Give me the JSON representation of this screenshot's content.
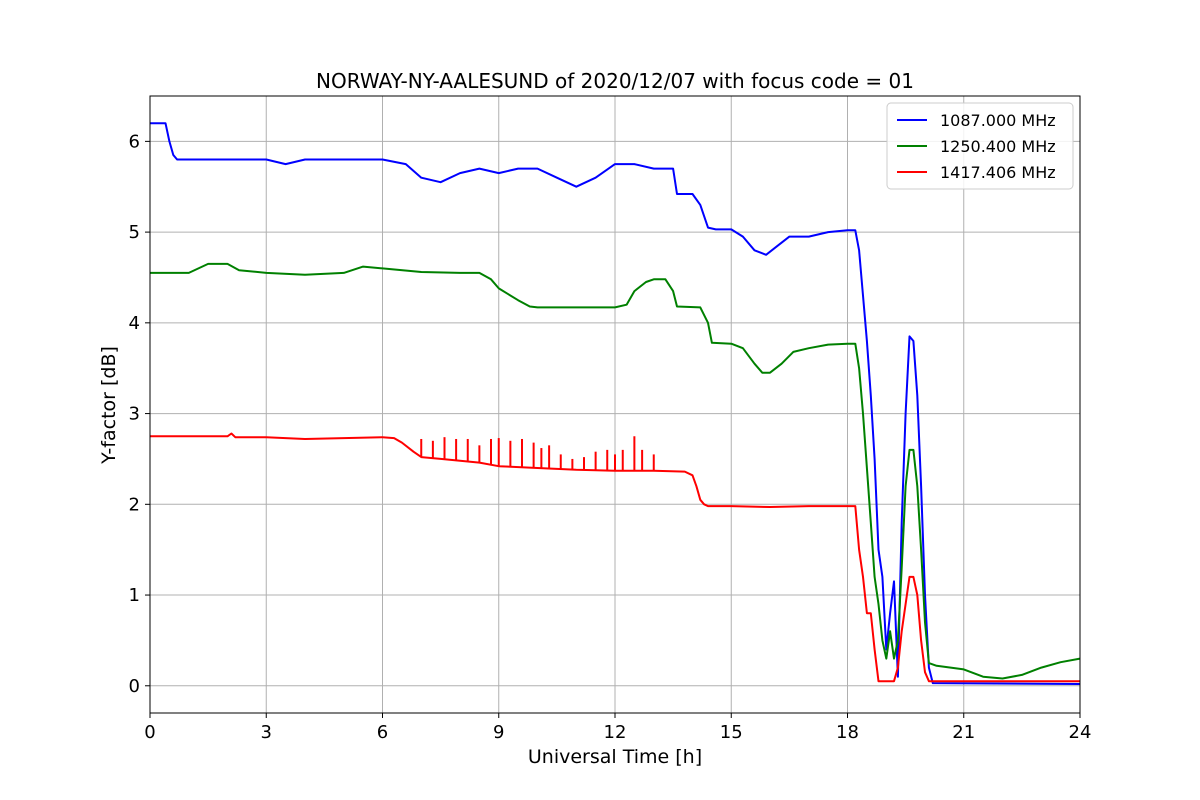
{
  "chart_data": {
    "type": "line",
    "title": "NORWAY-NY-AALESUND of 2020/12/07 with focus code = 01",
    "xlabel": "Universal Time [h]",
    "ylabel": "Y-factor [dB]",
    "xlim": [
      0,
      24
    ],
    "ylim": [
      -0.3,
      6.5
    ],
    "xticks": [
      0,
      3,
      6,
      9,
      12,
      15,
      18,
      21,
      24
    ],
    "yticks": [
      0,
      1,
      2,
      3,
      4,
      5,
      6
    ],
    "grid": true,
    "legend_position": "top-right",
    "series": [
      {
        "name": "1087.000 MHz",
        "color": "#0000ff",
        "x": [
          0,
          0.4,
          0.5,
          0.6,
          0.7,
          3.0,
          3.5,
          4.0,
          6.0,
          6.6,
          7.0,
          7.5,
          8.0,
          8.5,
          9.0,
          9.5,
          10.0,
          10.5,
          11.0,
          11.5,
          12.0,
          12.5,
          13.0,
          13.5,
          13.6,
          14.0,
          14.2,
          14.4,
          14.6,
          15.0,
          15.3,
          15.6,
          15.9,
          16.2,
          16.5,
          17.0,
          17.5,
          18.0,
          18.2,
          18.3,
          18.4,
          18.5,
          18.6,
          18.7,
          18.8,
          18.9,
          19.0,
          19.1,
          19.2,
          19.3,
          19.4,
          19.5,
          19.6,
          19.7,
          19.8,
          19.9,
          20.0,
          20.1,
          20.2,
          24.0
        ],
        "y": [
          6.2,
          6.2,
          6.0,
          5.85,
          5.8,
          5.8,
          5.75,
          5.8,
          5.8,
          5.75,
          5.6,
          5.55,
          5.65,
          5.7,
          5.65,
          5.7,
          5.7,
          5.6,
          5.5,
          5.6,
          5.75,
          5.75,
          5.7,
          5.7,
          5.42,
          5.42,
          5.3,
          5.05,
          5.03,
          5.03,
          4.95,
          4.8,
          4.75,
          4.85,
          4.95,
          4.95,
          5.0,
          5.02,
          5.02,
          4.8,
          4.3,
          3.8,
          3.2,
          2.5,
          1.5,
          1.2,
          0.4,
          0.8,
          1.15,
          0.1,
          1.8,
          3.0,
          3.85,
          3.8,
          3.2,
          2.2,
          1.0,
          0.2,
          0.03,
          0.02
        ]
      },
      {
        "name": "1250.400 MHz",
        "color": "#008000",
        "x": [
          0,
          1.0,
          1.5,
          2.0,
          2.3,
          3.0,
          4.0,
          5.0,
          5.5,
          6.0,
          7.0,
          8.0,
          8.5,
          8.8,
          9.0,
          9.5,
          9.8,
          10.0,
          11.0,
          12.0,
          12.3,
          12.5,
          12.8,
          13.0,
          13.3,
          13.5,
          13.6,
          14.2,
          14.4,
          14.5,
          15.0,
          15.3,
          15.6,
          15.8,
          16.0,
          16.3,
          16.6,
          17.0,
          17.5,
          18.0,
          18.2,
          18.3,
          18.4,
          18.5,
          18.6,
          18.7,
          18.8,
          18.9,
          19.0,
          19.1,
          19.2,
          19.3,
          19.4,
          19.5,
          19.6,
          19.7,
          19.8,
          19.9,
          20.0,
          20.1,
          20.3,
          21.0,
          21.5,
          22.0,
          22.5,
          23.0,
          23.5,
          24.0
        ],
        "y": [
          4.55,
          4.55,
          4.65,
          4.65,
          4.58,
          4.55,
          4.53,
          4.55,
          4.62,
          4.6,
          4.56,
          4.55,
          4.55,
          4.48,
          4.38,
          4.25,
          4.18,
          4.17,
          4.17,
          4.17,
          4.2,
          4.35,
          4.45,
          4.48,
          4.48,
          4.35,
          4.18,
          4.17,
          4.0,
          3.78,
          3.77,
          3.72,
          3.55,
          3.45,
          3.45,
          3.55,
          3.68,
          3.72,
          3.76,
          3.77,
          3.77,
          3.5,
          3.0,
          2.4,
          1.8,
          1.2,
          0.9,
          0.5,
          0.3,
          0.6,
          0.3,
          0.5,
          1.3,
          2.2,
          2.6,
          2.6,
          2.2,
          1.5,
          0.7,
          0.25,
          0.22,
          0.18,
          0.1,
          0.08,
          0.12,
          0.2,
          0.26,
          0.3
        ]
      },
      {
        "name": "1417.406 MHz",
        "color": "#ff0000",
        "x": [
          0,
          2.0,
          2.1,
          2.2,
          3.0,
          4.0,
          6.0,
          6.3,
          6.5,
          6.8,
          7.0,
          7.5,
          8.0,
          8.5,
          9.0,
          10.0,
          11.0,
          12.0,
          13.0,
          13.8,
          14.0,
          14.1,
          14.2,
          14.3,
          14.4,
          14.6,
          15.0,
          16.0,
          17.0,
          18.0,
          18.2,
          18.3,
          18.4,
          18.5,
          18.6,
          18.7,
          18.8,
          19.0,
          19.2,
          19.3,
          19.4,
          19.5,
          19.6,
          19.7,
          19.8,
          19.9,
          20.0,
          20.1,
          24.0
        ],
        "y": [
          2.75,
          2.75,
          2.78,
          2.74,
          2.74,
          2.72,
          2.74,
          2.73,
          2.68,
          2.58,
          2.52,
          2.5,
          2.48,
          2.46,
          2.42,
          2.4,
          2.38,
          2.37,
          2.37,
          2.36,
          2.32,
          2.2,
          2.05,
          2.0,
          1.98,
          1.98,
          1.98,
          1.97,
          1.98,
          1.98,
          1.98,
          1.5,
          1.2,
          0.8,
          0.8,
          0.4,
          0.05,
          0.05,
          0.05,
          0.2,
          0.6,
          0.9,
          1.2,
          1.2,
          1.0,
          0.5,
          0.15,
          0.05,
          0.05
        ]
      }
    ],
    "spikes": {
      "series": "1417.406 MHz",
      "x": [
        7.0,
        7.3,
        7.6,
        7.9,
        8.2,
        8.5,
        8.8,
        9.0,
        9.3,
        9.6,
        9.9,
        10.1,
        10.3,
        10.6,
        10.9,
        11.2,
        11.5,
        11.8,
        12.0,
        12.2,
        12.5,
        12.7,
        13.0
      ],
      "y": [
        2.72,
        2.7,
        2.74,
        2.72,
        2.72,
        2.65,
        2.72,
        2.73,
        2.7,
        2.72,
        2.68,
        2.62,
        2.65,
        2.55,
        2.5,
        2.52,
        2.58,
        2.6,
        2.55,
        2.6,
        2.75,
        2.6,
        2.55
      ]
    }
  }
}
